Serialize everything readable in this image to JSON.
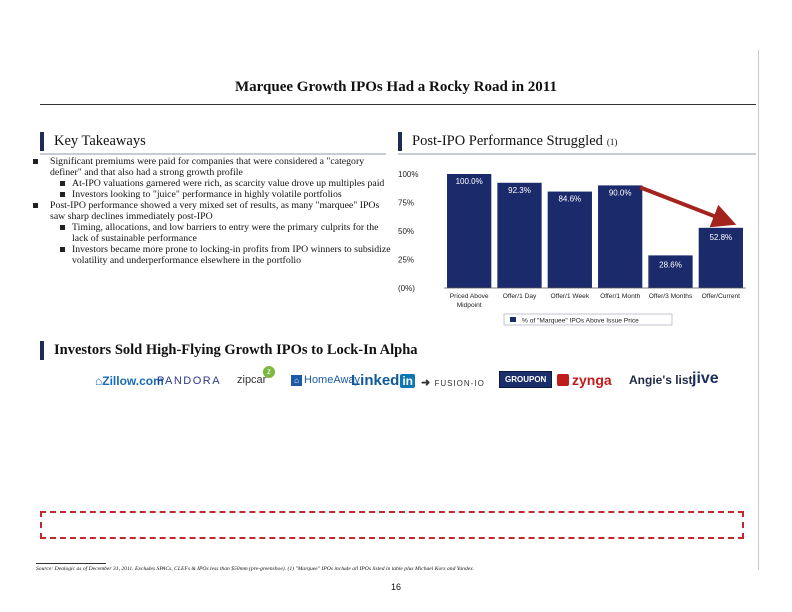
{
  "page": {
    "title": "Marquee Growth IPOs Had a Rocky Road in 2011",
    "page_number": "16",
    "source": "Source: Dealogic as of December 31, 2011. Excludes SPACs, CLEFs & IPOs less than $50mm (pre-greenshoe). (1) \"Marquee\" IPOs include all IPOs listed in table plus Michael Kors and Yandex."
  },
  "takeaways": {
    "heading": "Key Takeaways",
    "items": [
      {
        "text": "Significant premiums were paid for companies that were considered a \"category definer\" and that also had a strong growth profile",
        "sub": [
          "At-IPO valuations garnered were rich, as scarcity value drove up multiples paid",
          "Investors looking to \"juice\" performance in highly volatile portfolios"
        ]
      },
      {
        "text": "Post-IPO performance showed a very mixed set of results, as many \"marquee\" IPOs saw sharp declines immediately post-IPO",
        "sub": [
          "Timing, allocations, and low barriers to entry were the primary culprits for the lack of sustainable performance",
          "Investors became more prone to locking-in profits from IPO winners to subsidize volatility and underperformance elsewhere in the portfolio"
        ]
      }
    ]
  },
  "performance": {
    "heading": "Post-IPO Performance Struggled",
    "heading_sup": "(1)"
  },
  "chart_data": {
    "type": "bar",
    "categories": [
      "Priced Above Midpoint",
      "Offer/1 Day",
      "Offer/1 Week",
      "Offer/1 Month",
      "Offer/3 Months",
      "Offer/Current"
    ],
    "category_lines": [
      [
        "Priced Above",
        "Midpoint"
      ],
      [
        "Offer/1 Day"
      ],
      [
        "Offer/1 Week"
      ],
      [
        "Offer/1 Month"
      ],
      [
        "Offer/3 Months"
      ],
      [
        "Offer/Current"
      ]
    ],
    "values": [
      100.0,
      92.3,
      84.6,
      90.0,
      28.6,
      52.8
    ],
    "data_labels": [
      "100.0%",
      "92.3%",
      "84.6%",
      "90.0%",
      "28.6%",
      "52.8%"
    ],
    "yticks": [
      100,
      75,
      50,
      25,
      0
    ],
    "ytick_labels": [
      "100%",
      "75%",
      "50%",
      "25%",
      "(0%)"
    ],
    "ylim": [
      0,
      100
    ],
    "series": [
      {
        "name": "% of \"Marquee\" IPOs Above Issue Price",
        "values": [
          100.0,
          92.3,
          84.6,
          90.0,
          28.6,
          52.8
        ]
      }
    ],
    "legend_position": "bottom-right",
    "bar_color": "#1b2a6b",
    "arrow_color": "#a3231f",
    "grid": false
  },
  "investors": {
    "heading": "Investors Sold High-Flying Growth IPOs to Lock-In Alpha",
    "logos": [
      "Zillow.com",
      "PANDORA",
      "zipcar",
      "HomeAway",
      "Linked",
      "in",
      "FUSION-IO",
      "GROUPON",
      "zynga",
      "Angie's list",
      "jive"
    ]
  }
}
